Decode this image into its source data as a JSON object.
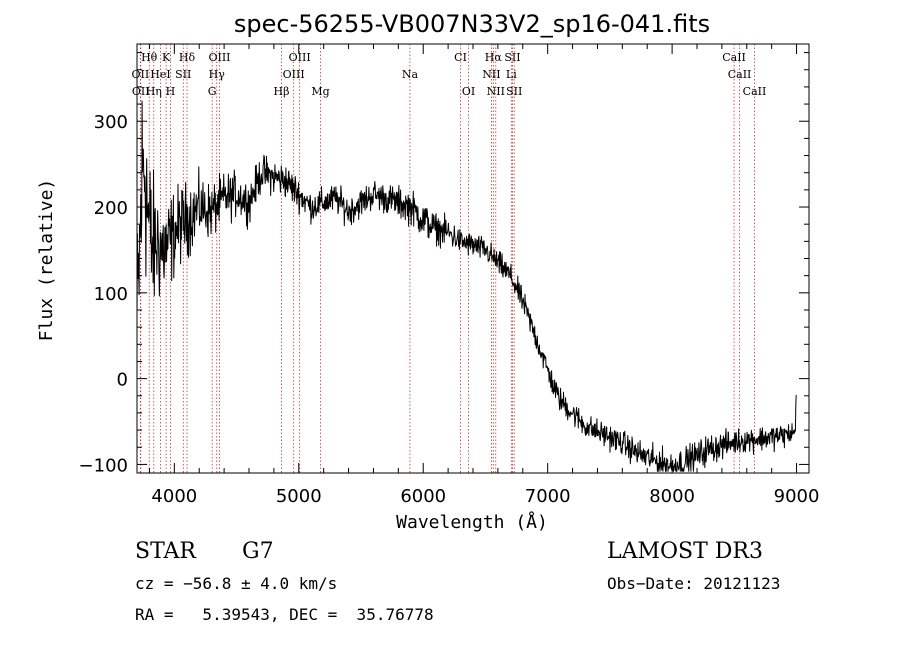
{
  "chart_data": {
    "type": "line",
    "title": "spec-56255-VB007N33V2_sp16-041.fits",
    "xlabel": "Wavelength (Å)",
    "ylabel": "Flux (relative)",
    "xlim": [
      3700,
      9100
    ],
    "ylim": [
      -110,
      390
    ],
    "x_ticks": [
      4000,
      5000,
      6000,
      7000,
      8000,
      9000
    ],
    "x_tick_labels": [
      "4000",
      "5000",
      "6000",
      "7000",
      "8000",
      "9000"
    ],
    "y_ticks": [
      -100,
      0,
      100,
      200,
      300
    ],
    "y_tick_labels": [
      "−100",
      "0",
      "100",
      "200",
      "300"
    ],
    "series": [
      {
        "name": "flux",
        "x": [
          3700,
          3720,
          3740,
          3760,
          3780,
          3800,
          3830,
          3860,
          3900,
          3950,
          4000,
          4050,
          4100,
          4200,
          4300,
          4400,
          4500,
          4600,
          4700,
          4800,
          4900,
          5000,
          5100,
          5200,
          5300,
          5400,
          5500,
          5600,
          5700,
          5800,
          5900,
          6000,
          6100,
          6200,
          6300,
          6400,
          6500,
          6600,
          6700,
          6750,
          6800,
          6850,
          6900,
          6950,
          7000,
          7050,
          7100,
          7200,
          7300,
          7400,
          7500,
          7600,
          7700,
          7800,
          7900,
          8000,
          8100,
          8200,
          8300,
          8400,
          8500,
          8600,
          8700,
          8800,
          8900,
          8990,
          9000
        ],
        "y": [
          60,
          140,
          230,
          260,
          210,
          170,
          150,
          160,
          150,
          155,
          170,
          180,
          185,
          200,
          195,
          210,
          215,
          205,
          240,
          235,
          230,
          215,
          200,
          205,
          210,
          195,
          205,
          215,
          210,
          205,
          200,
          185,
          175,
          170,
          160,
          155,
          150,
          135,
          120,
          105,
          90,
          70,
          50,
          30,
          10,
          -10,
          -25,
          -40,
          -55,
          -62,
          -68,
          -75,
          -85,
          -92,
          -98,
          -102,
          -97,
          -90,
          -82,
          -78,
          -74,
          -71,
          -70,
          -68,
          -66,
          -62,
          0
        ],
        "noise": [
          80,
          80,
          95,
          95,
          80,
          70,
          60,
          50,
          45,
          40,
          35,
          32,
          30,
          25,
          22,
          20,
          18,
          16,
          15,
          14,
          14,
          13,
          12,
          12,
          12,
          12,
          12,
          12,
          12,
          13,
          14,
          15,
          12,
          12,
          10,
          10,
          10,
          10,
          10,
          10,
          10,
          10,
          10,
          10,
          10,
          10,
          10,
          10,
          10,
          10,
          10,
          10,
          11,
          11,
          12,
          13,
          12,
          12,
          12,
          11,
          10,
          10,
          10,
          10,
          10,
          8,
          0
        ]
      }
    ],
    "line_markers": [
      {
        "label": "Hθ",
        "x": 3798,
        "row": 1
      },
      {
        "label": "K",
        "x": 3934,
        "row": 1
      },
      {
        "label": "Hδ",
        "x": 4102,
        "row": 1
      },
      {
        "label": "OIII",
        "x": 4363,
        "row": 1
      },
      {
        "label": "OIII",
        "x": 5007,
        "row": 1
      },
      {
        "label": "CI",
        "x": 6300,
        "row": 1
      },
      {
        "label": "Hα",
        "x": 6563,
        "row": 1
      },
      {
        "label": "SII",
        "x": 6717,
        "row": 1
      },
      {
        "label": "CaII",
        "x": 8498,
        "row": 1
      },
      {
        "label": "OII",
        "x": 3727,
        "row": 2
      },
      {
        "label": "HeI",
        "x": 3889,
        "row": 2
      },
      {
        "label": "SII",
        "x": 4072,
        "row": 2
      },
      {
        "label": "Hγ",
        "x": 4341,
        "row": 2
      },
      {
        "label": "OIII",
        "x": 4959,
        "row": 2
      },
      {
        "label": "Na",
        "x": 5893,
        "row": 2
      },
      {
        "label": "NII",
        "x": 6548,
        "row": 2
      },
      {
        "label": "Li",
        "x": 6708,
        "row": 2
      },
      {
        "label": "CaII",
        "x": 8542,
        "row": 2
      },
      {
        "label": "OII",
        "x": 3730,
        "row": 3
      },
      {
        "label": "Hη",
        "x": 3835,
        "row": 3
      },
      {
        "label": "H",
        "x": 3969,
        "row": 3
      },
      {
        "label": "G",
        "x": 4304,
        "row": 3
      },
      {
        "label": "Hβ",
        "x": 4861,
        "row": 3
      },
      {
        "label": "Mg",
        "x": 5175,
        "row": 3
      },
      {
        "label": "OI",
        "x": 6364,
        "row": 3
      },
      {
        "label": "NII",
        "x": 6583,
        "row": 3
      },
      {
        "label": "SII",
        "x": 6731,
        "row": 3
      },
      {
        "label": "CaII",
        "x": 8662,
        "row": 3
      }
    ]
  },
  "info": {
    "object_class": "STAR",
    "subclass": "G7",
    "survey": "LAMOST DR3",
    "cz_line": "cz = −56.8 ± 4.0 km/s",
    "obs_date_line": "Obs−Date: 20121123",
    "radec_line": "RA =   5.39543, DEC =  35.76778"
  },
  "colors": {
    "marker_line": "#c0392b",
    "spectrum": "#000000",
    "axis": "#000000",
    "background": "#ffffff"
  }
}
